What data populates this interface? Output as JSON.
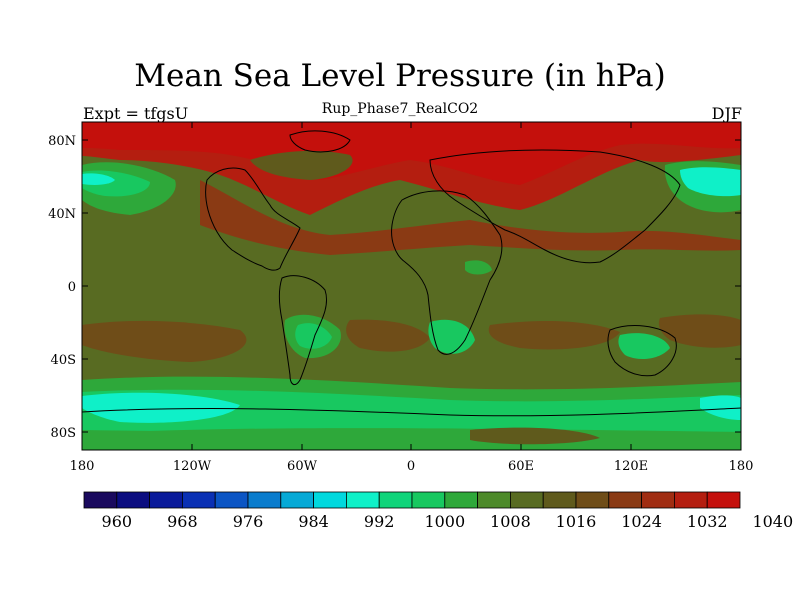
{
  "title": "Mean Sea Level Pressure (in hPa)",
  "subtitle": "Rup_Phase7_RealCO2",
  "left_label": "Expt = tfgsU",
  "right_label": "DJF",
  "axes": {
    "lat_ticks": [
      "80N",
      "40N",
      "0",
      "40S",
      "80S"
    ],
    "lon_ticks": [
      "180",
      "120W",
      "60W",
      "0",
      "60E",
      "120E",
      "180"
    ]
  },
  "colorbar": {
    "colors": [
      "#1a0a5e",
      "#0b0d80",
      "#0a1a9a",
      "#0a30b4",
      "#0b55c4",
      "#0a7ccd",
      "#06a9d6",
      "#00d8de",
      "#0ff0c8",
      "#10d47a",
      "#18c860",
      "#2ea83a",
      "#4d8a2a",
      "#586b22",
      "#5f5a1c",
      "#6f4d18",
      "#8a3a14",
      "#a02d12",
      "#b41e10",
      "#c4100c"
    ],
    "labels": [
      "960",
      "968",
      "976",
      "984",
      "992",
      "1000",
      "1008",
      "1016",
      "1024",
      "1032",
      "1040"
    ]
  }
}
